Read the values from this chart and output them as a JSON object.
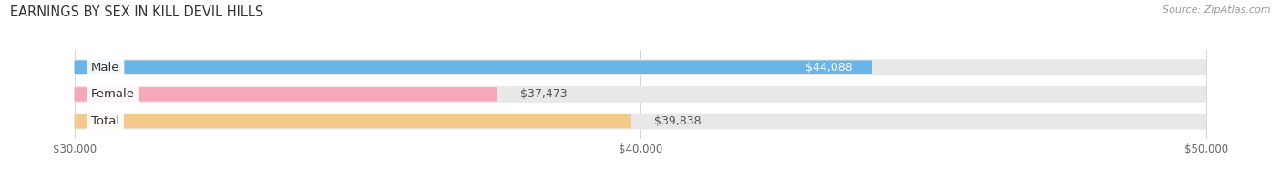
{
  "title": "EARNINGS BY SEX IN KILL DEVIL HILLS",
  "source": "Source: ZipAtlas.com",
  "categories": [
    "Male",
    "Female",
    "Total"
  ],
  "values": [
    44088,
    37473,
    39838
  ],
  "bar_colors": [
    "#6ab4e8",
    "#f4a8b8",
    "#f5c98a"
  ],
  "xmin": 30000,
  "xmax": 50000,
  "xticks": [
    30000,
    40000,
    50000
  ],
  "xtick_labels": [
    "$30,000",
    "$40,000",
    "$50,000"
  ],
  "background_color": "#ffffff",
  "bar_track_color": "#e8e8e8",
  "value_labels": [
    "$44,088",
    "$37,473",
    "$39,838"
  ],
  "value_label_inside": [
    true,
    false,
    false
  ],
  "figsize": [
    14.06,
    1.96
  ],
  "dpi": 100
}
